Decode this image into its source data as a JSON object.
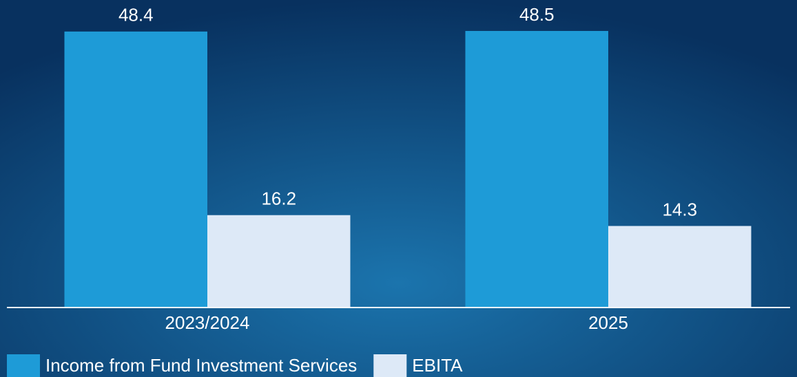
{
  "chart_data": {
    "type": "bar",
    "categories": [
      "2023/2024",
      "2025"
    ],
    "series": [
      {
        "name": "Income from Fund Investment Services",
        "color": "#1e9bd7",
        "values": [
          48.4,
          48.5
        ]
      },
      {
        "name": "EBITA",
        "color": "#dde9f7",
        "values": [
          16.2,
          14.3
        ]
      }
    ]
  }
}
